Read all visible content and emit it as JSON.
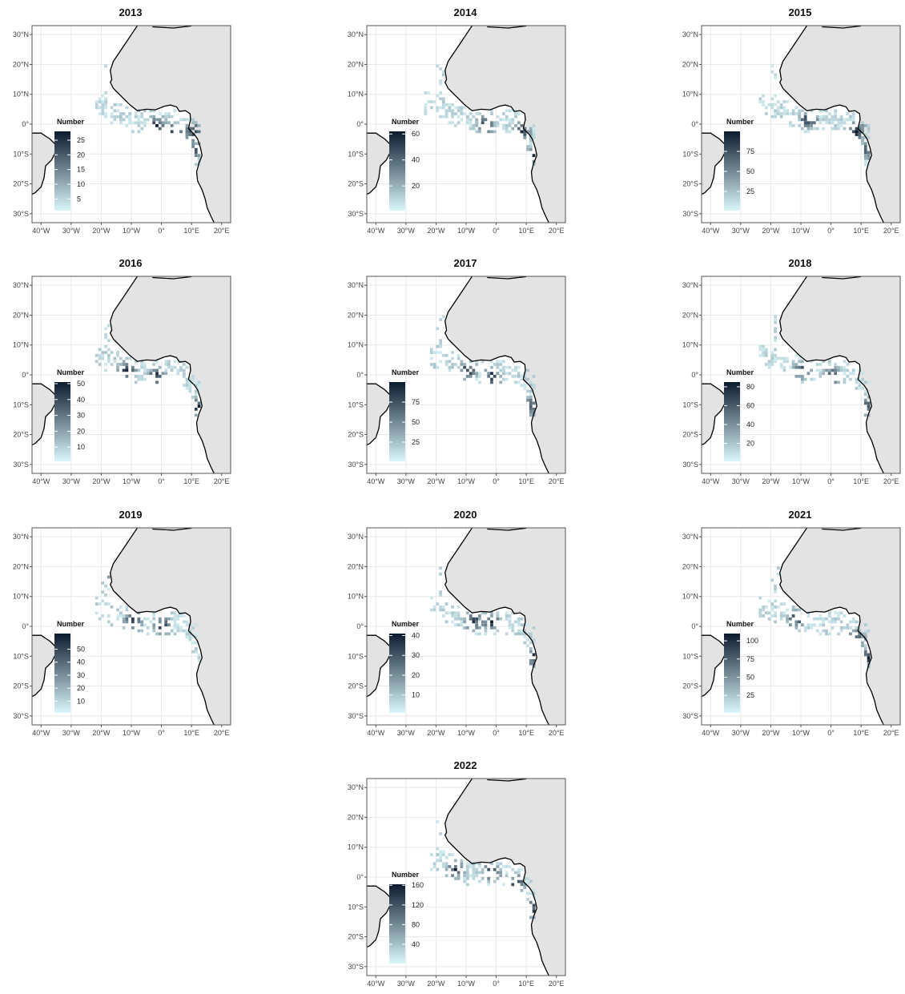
{
  "colors": {
    "land": "#e3e3e3",
    "coastline": "#000000",
    "grid": "#e8e8e8",
    "scale_low": "#d9f7fa",
    "scale_high": "#0c1a2e"
  },
  "x_ticks": [
    "40°W",
    "30°W",
    "20°W",
    "10°W",
    "0°",
    "10°E",
    "20°E"
  ],
  "y_ticks": [
    "30°N",
    "20°N",
    "10°N",
    "0°",
    "10°S",
    "20°S",
    "30°S"
  ],
  "chart_data": [
    {
      "type": "heatmap",
      "title": "2013",
      "legend": {
        "title": "Number",
        "ticks": [
          5,
          10,
          15,
          20,
          25
        ],
        "min": 1,
        "max": 28
      }
    },
    {
      "type": "heatmap",
      "title": "2014",
      "legend": {
        "title": "Number",
        "ticks": [
          20,
          40,
          60
        ],
        "min": 1,
        "max": 62
      }
    },
    {
      "type": "heatmap",
      "title": "2015",
      "legend": {
        "title": "Number",
        "ticks": [
          25,
          50,
          75
        ],
        "min": 1,
        "max": 100
      }
    },
    {
      "type": "heatmap",
      "title": "2016",
      "legend": {
        "title": "Number",
        "ticks": [
          10,
          20,
          30,
          40,
          50
        ],
        "min": 1,
        "max": 51
      }
    },
    {
      "type": "heatmap",
      "title": "2017",
      "legend": {
        "title": "Number",
        "ticks": [
          25,
          50,
          75
        ],
        "min": 1,
        "max": 100
      }
    },
    {
      "type": "heatmap",
      "title": "2018",
      "legend": {
        "title": "Number",
        "ticks": [
          20,
          40,
          60,
          80
        ],
        "min": 1,
        "max": 85
      }
    },
    {
      "type": "heatmap",
      "title": "2019",
      "legend": {
        "title": "Number",
        "ticks": [
          10,
          20,
          30,
          40,
          50
        ],
        "min": 1,
        "max": 62
      }
    },
    {
      "type": "heatmap",
      "title": "2020",
      "legend": {
        "title": "Number",
        "ticks": [
          10,
          20,
          30,
          40
        ],
        "min": 1,
        "max": 41
      }
    },
    {
      "type": "heatmap",
      "title": "2021",
      "legend": {
        "title": "Number",
        "ticks": [
          25,
          50,
          75,
          100
        ],
        "min": 1,
        "max": 110
      }
    },
    {
      "type": "heatmap",
      "title": "2022",
      "legend": {
        "title": "Number",
        "ticks": [
          40,
          80,
          120,
          160
        ],
        "min": 1,
        "max": 162
      }
    }
  ]
}
